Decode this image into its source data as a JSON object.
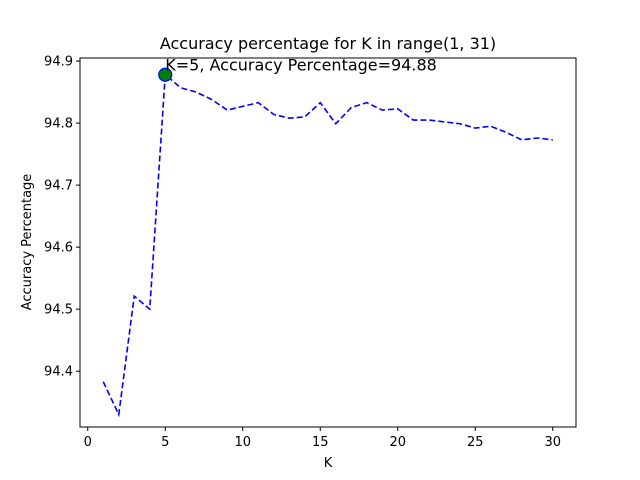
{
  "chart_data": {
    "type": "line",
    "title": "Accuracy percentage for K in range(1, 31)",
    "xlabel": "K",
    "ylabel": "Accuracy Percentage",
    "xlim": [
      -0.5,
      31.5
    ],
    "ylim": [
      94.31,
      94.905
    ],
    "xticks": [
      0,
      5,
      10,
      15,
      20,
      25,
      30
    ],
    "yticks": [
      94.4,
      94.5,
      94.6,
      94.7,
      94.8,
      94.9
    ],
    "grid": false,
    "series": [
      {
        "color": "#0000ff",
        "linestyle": "dashed",
        "x": [
          1,
          2,
          3,
          4,
          5,
          6,
          7,
          8,
          9,
          10,
          11,
          12,
          13,
          14,
          15,
          16,
          17,
          18,
          19,
          20,
          21,
          22,
          23,
          24,
          25,
          26,
          27,
          28,
          29,
          30
        ],
        "y": [
          94.383,
          94.33,
          94.521,
          94.5,
          94.878,
          94.857,
          94.85,
          94.838,
          94.821,
          94.827,
          94.833,
          94.814,
          94.808,
          94.81,
          94.833,
          94.799,
          94.825,
          94.833,
          94.821,
          94.823,
          94.805,
          94.805,
          94.802,
          94.799,
          94.792,
          94.795,
          94.785,
          94.773,
          94.776,
          94.773
        ]
      }
    ],
    "highlight": {
      "x": 5,
      "y": 94.878,
      "color": "#008000",
      "edge_color": "#0000ff",
      "label": "K=5, Accuracy Percentage=94.88"
    }
  }
}
